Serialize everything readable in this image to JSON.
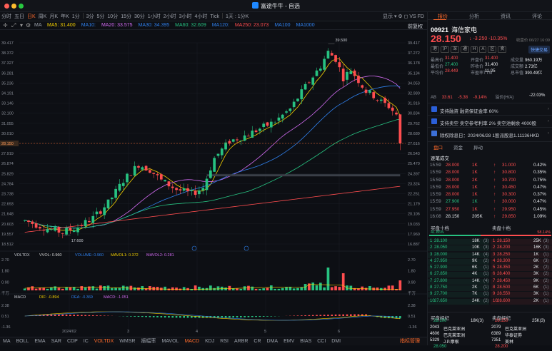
{
  "window": {
    "title": "富途牛牛 - 自选"
  },
  "toolbar": {
    "timeframes": [
      "分时",
      "五日",
      "日K",
      "周K",
      "月K",
      "年K",
      "1分",
      "3分",
      "5分",
      "10分",
      "15分",
      "30分",
      "1小时",
      "2小时",
      "3小时",
      "4小时",
      "Tick",
      "1天 : 1分K"
    ],
    "active_index": 2,
    "right_items": "显示 ▾   ⚙  ◻  VS  FD"
  },
  "toolbar2": {
    "mode": "MA",
    "right": "前复权"
  },
  "ma_legend": [
    {
      "label": "MA5: 31.400",
      "color": "#f5d100"
    },
    {
      "label": "MA10:",
      "color": "#2f80ed"
    },
    {
      "label": "MA20: 33.575",
      "color": "#d46cf4"
    },
    {
      "label": "MA30: 34.395",
      "color": "#2f80ed"
    },
    {
      "label": "MA60: 32.609",
      "color": "#27c281"
    },
    {
      "label": "MA120:",
      "color": "#2f80ed"
    },
    {
      "label": "MA250: 23.073",
      "color": "#ff4d4f"
    },
    {
      "label": "MA100",
      "color": "#2f80ed"
    },
    {
      "label": "MA1000",
      "color": "#2f80ed"
    }
  ],
  "price_axis": [
    "39.417",
    "38.372",
    "37.327",
    "36.281",
    "35.236",
    "34.191",
    "33.146",
    "32.100",
    "31.055",
    "30.010",
    "28.965",
    "27.919",
    "26.874",
    "25.829",
    "24.784",
    "23.738",
    "22.693",
    "21.648",
    "20.603",
    "19.557",
    "18.512"
  ],
  "price_axis_right": [
    "39.417",
    "37.272",
    "36.178",
    "35.134",
    "34.053",
    "32.980",
    "31.916",
    "30.834",
    "29.762",
    "28.689",
    "27.616",
    "26.543",
    "25.470",
    "24.397",
    "23.324",
    "22.251",
    "21.179",
    "20.106",
    "19.033",
    "17.960",
    "16.887"
  ],
  "annotations": {
    "high": "39.500",
    "low": "17.600",
    "current_tag": "28.150"
  },
  "volume_legend": {
    "name": "VOLTDX",
    "items": [
      {
        "label": "VVOL: 0.960",
        "color": "#d9d9d9"
      },
      {
        "label": "VOLUME: 0.960",
        "color": "#2f80ed"
      },
      {
        "label": "MAVOL1: 0.372",
        "color": "#f5d100"
      },
      {
        "label": "MAVOL2: 0.281",
        "color": "#d46cf4"
      }
    ]
  },
  "volume_axis": [
    "2.70",
    "1.80",
    "0.90",
    "千万"
  ],
  "macd_legend": {
    "name": "MACD",
    "items": [
      {
        "label": "DIF: -0.894",
        "color": "#f5d100"
      },
      {
        "label": "DEA: -0.369",
        "color": "#2f80ed"
      },
      {
        "label": "MACD: -1.051",
        "color": "#d46cf4"
      }
    ]
  },
  "macd_axis": [
    "2.38",
    "0.51",
    "-1.36"
  ],
  "date_labels": [
    "2024/02",
    "3",
    "4",
    "5",
    "6"
  ],
  "bottom_tabs": [
    "MA",
    "BOLL",
    "EMA",
    "SAR",
    "CDP",
    "IC",
    "VOLTDX",
    "WMSR",
    "振幅率",
    "MAVOL",
    "MACD",
    "KDJ",
    "RSI",
    "ARBR",
    "CR",
    "DMA",
    "EMV",
    "BIAS",
    "CCI",
    "DMI"
  ],
  "bottom_active": [
    6,
    10
  ],
  "bottom_manage": "指标管理",
  "panel": {
    "tabs": [
      "报价",
      "分析",
      "资讯",
      "评论"
    ],
    "code": "00921",
    "name": "海信家电",
    "price": "28.150",
    "change": "↓ -3.250 -10.35%",
    "time": "收盘价 06/27 16:09",
    "badges": [
      "港",
      "沪",
      "深",
      "通",
      "H",
      "A",
      "区",
      "卖"
    ],
    "quick": "快捷交易",
    "stats": [
      [
        {
          "l": "最高价",
          "v": "31.400",
          "c": "red"
        },
        {
          "l": "开盘价",
          "v": "31.400",
          "c": "red"
        },
        {
          "l": "成交量",
          "v": "960.19万",
          "c": "wht"
        }
      ],
      [
        {
          "l": "最低价",
          "v": "27.400",
          "c": "grn"
        },
        {
          "l": "昨收价",
          "v": "31.400",
          "c": "wht"
        },
        {
          "l": "成交额",
          "v": "2.73亿",
          "c": "wht"
        }
      ],
      [
        {
          "l": "平均价",
          "v": "28.449",
          "c": "red"
        },
        {
          "l": "市盈率TTM",
          "v": "11.05",
          "c": "wht"
        },
        {
          "l": "总市值",
          "v": "390.49亿",
          "c": "wht"
        }
      ]
    ],
    "ab": {
      "label": "AB",
      "v1": "33.61",
      "v2": "-5.38",
      "v3": "-9.14%",
      "rlabel": "溢价(H/A)",
      "rv": "-22.03%"
    },
    "info": [
      {
        "text": "支持融资  融资保证金率 60%"
      },
      {
        "text": "支持卖空  卖空参考利率 2%  卖空池剩余 4000股"
      },
      {
        "text": "除权除息日：2024/06/28  1股派股息1.11136HKD"
      }
    ],
    "subtabs": [
      "盘口",
      "资金",
      "异动"
    ],
    "trades_header": "逐笔成交",
    "trades": [
      {
        "t": "15:59",
        "p": "28.000",
        "q": "1K",
        "c": "red",
        "ap": "31.000",
        "pct": "0.42%"
      },
      {
        "t": "15:59",
        "p": "28.000",
        "q": "1K",
        "c": "red",
        "ap": "30.800",
        "pct": "0.35%"
      },
      {
        "t": "15:59",
        "p": "28.000",
        "q": "2K",
        "c": "red",
        "ap": "30.700",
        "pct": "0.75%"
      },
      {
        "t": "15:59",
        "p": "28.000",
        "q": "1K",
        "c": "red",
        "ap": "30.450",
        "pct": "0.47%"
      },
      {
        "t": "15:59",
        "p": "28.000",
        "q": "1K",
        "c": "red",
        "ap": "30.300",
        "pct": "0.37%"
      },
      {
        "t": "15:59",
        "p": "27.900",
        "q": "1K",
        "c": "grn",
        "ap": "30.000",
        "pct": "0.47%"
      },
      {
        "t": "15:59",
        "p": "27.950",
        "q": "1K",
        "c": "red",
        "ap": "29.950",
        "pct": "0.45%"
      },
      {
        "t": "16:08",
        "p": "28.150",
        "q": "205K",
        "c": "wht",
        "ap": "29.850",
        "pct": "1.09%"
      }
    ],
    "depth_header": {
      "bid": "买盘十档",
      "ask": "卖盘十档"
    },
    "depth_pct": {
      "bid": "41.86%",
      "ask": "58.14%",
      "bid_fraction": 0.4186
    },
    "bids": [
      {
        "p": "28.100",
        "q": "18K",
        "n": "(3)"
      },
      {
        "p": "28.050",
        "q": "10K",
        "n": "(3)"
      },
      {
        "p": "28.000",
        "q": "14K",
        "n": "(4)"
      },
      {
        "p": "27.950",
        "q": "9K",
        "n": "(2)"
      },
      {
        "p": "27.900",
        "q": "6K",
        "n": "(1)"
      },
      {
        "p": "27.850",
        "q": "4K",
        "n": "(1)"
      },
      {
        "p": "27.800",
        "q": "14K",
        "n": "(4)"
      },
      {
        "p": "27.750",
        "q": "2K",
        "n": "(1)"
      },
      {
        "p": "27.700",
        "q": "7K",
        "n": "(1)"
      },
      {
        "p": "27.650",
        "q": "24K",
        "n": "(2)"
      }
    ],
    "asks": [
      {
        "p": "28.150",
        "q": "25K",
        "n": "(3)"
      },
      {
        "p": "28.200",
        "q": "16K",
        "n": "(3)"
      },
      {
        "p": "28.250",
        "q": "1K",
        "n": "(1)"
      },
      {
        "p": "28.300",
        "q": "6K",
        "n": "(3)"
      },
      {
        "p": "28.350",
        "q": "2K",
        "n": "(2)"
      },
      {
        "p": "28.400",
        "q": "3K",
        "n": "(2)"
      },
      {
        "p": "28.450",
        "q": "9K",
        "n": "(2)"
      },
      {
        "p": "28.500",
        "q": "6K",
        "n": "(1)"
      },
      {
        "p": "28.550",
        "q": "3K",
        "n": "(1)"
      },
      {
        "p": "28.600",
        "q": "2K",
        "n": "(1)"
      }
    ],
    "brokers_header": {
      "bid": "买盘经纪",
      "ask": "卖盘经纪"
    },
    "broker_top": {
      "bp": "28.100",
      "bq": "18K(3)",
      "ap": "28.150",
      "aq": "25K(3)"
    },
    "brokers": [
      {
        "bid": "2043",
        "bname": "巴克莱亚洲",
        "ask": "2079",
        "aname": "巴克莱亚洲"
      },
      {
        "bid": "4606",
        "bname": "巴克莱亚洲",
        "ask": "6389",
        "aname": "华泰证券"
      },
      {
        "bid": "5329",
        "bname": "J.P.摩根",
        "ask": "7351",
        "aname": "美林"
      }
    ],
    "broker_bottom": {
      "bp": "28.050",
      "ap": "28.200"
    }
  }
}
